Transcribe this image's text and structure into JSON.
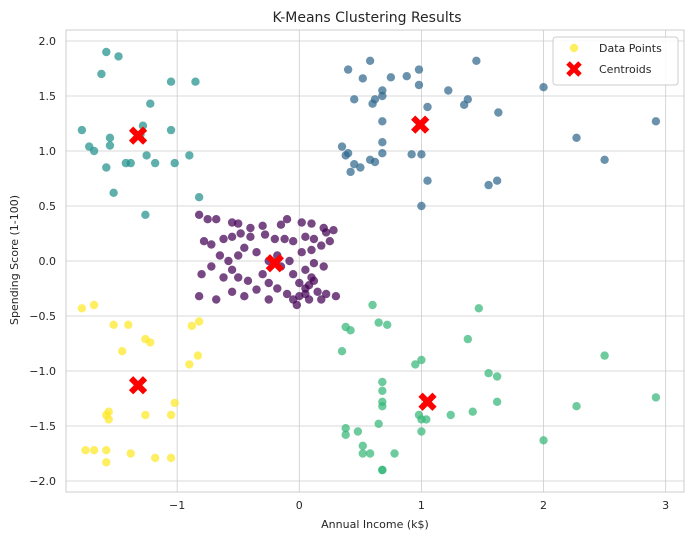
{
  "chart_data": {
    "type": "scatter",
    "title": "K-Means Clustering Results",
    "xlabel": "Annual Income (k$)",
    "ylabel": "Spending Score (1-100)",
    "xlim": [
      -1.91,
      3.15
    ],
    "ylim": [
      -2.1,
      2.1
    ],
    "xticks": [
      -1,
      0,
      1,
      2,
      3
    ],
    "yticks": [
      -2.0,
      -1.5,
      -1.0,
      -0.5,
      0.0,
      0.5,
      1.0,
      1.5,
      2.0
    ],
    "xtick_labels": [
      "−1",
      "0",
      "1",
      "2",
      "3"
    ],
    "ytick_labels": [
      "−2.0",
      "−1.5",
      "−1.0",
      "−0.5",
      "0.0",
      "0.5",
      "1.0",
      "1.5",
      "2.0"
    ],
    "grid": true,
    "legend_position": "top-right",
    "legend": [
      {
        "label": "Data Points",
        "marker": "circle",
        "color": "#fde725"
      },
      {
        "label": "Centroids",
        "marker": "x",
        "color": "#ff0000"
      }
    ],
    "clusters": [
      {
        "id": 0,
        "color": "#440154",
        "points": [
          [
            -0.82,
            0.42
          ],
          [
            -0.75,
            0.38
          ],
          [
            -0.68,
            0.38
          ],
          [
            -0.55,
            0.35
          ],
          [
            -0.5,
            0.34
          ],
          [
            -0.4,
            0.3
          ],
          [
            -0.3,
            0.32
          ],
          [
            -0.15,
            0.33
          ],
          [
            -0.1,
            0.38
          ],
          [
            0.02,
            0.35
          ],
          [
            0.1,
            0.34
          ],
          [
            0.2,
            0.3
          ],
          [
            -0.78,
            0.18
          ],
          [
            -0.72,
            0.15
          ],
          [
            -0.62,
            0.2
          ],
          [
            -0.55,
            0.22
          ],
          [
            -0.48,
            0.25
          ],
          [
            -0.4,
            0.22
          ],
          [
            -0.28,
            0.24
          ],
          [
            -0.2,
            0.2
          ],
          [
            -0.12,
            0.2
          ],
          [
            -0.05,
            0.18
          ],
          [
            0.05,
            0.22
          ],
          [
            0.12,
            0.2
          ],
          [
            0.22,
            0.26
          ],
          [
            0.28,
            0.28
          ],
          [
            -0.65,
            0.05
          ],
          [
            -0.58,
            0.0
          ],
          [
            -0.5,
            0.05
          ],
          [
            -0.45,
            0.12
          ],
          [
            -0.35,
            0.08
          ],
          [
            -0.25,
            0.0
          ],
          [
            -0.18,
            0.05
          ],
          [
            -0.08,
            0.0
          ],
          [
            0.02,
            0.08
          ],
          [
            0.1,
            0.1
          ],
          [
            0.18,
            0.14
          ],
          [
            0.25,
            0.18
          ],
          [
            -0.8,
            -0.12
          ],
          [
            -0.72,
            -0.05
          ],
          [
            -0.62,
            -0.15
          ],
          [
            -0.55,
            -0.08
          ],
          [
            -0.5,
            -0.15
          ],
          [
            -0.42,
            -0.18
          ],
          [
            -0.3,
            -0.12
          ],
          [
            -0.25,
            -0.2
          ],
          [
            -0.15,
            -0.05
          ],
          [
            -0.05,
            -0.12
          ],
          [
            0.05,
            -0.08
          ],
          [
            0.12,
            -0.02
          ],
          [
            0.2,
            -0.05
          ],
          [
            0.1,
            -0.15
          ],
          [
            0.0,
            -0.2
          ],
          [
            -0.82,
            -0.32
          ],
          [
            -0.68,
            -0.35
          ],
          [
            -0.55,
            -0.28
          ],
          [
            -0.45,
            -0.32
          ],
          [
            -0.35,
            -0.26
          ],
          [
            -0.25,
            -0.35
          ],
          [
            -0.1,
            -0.3
          ],
          [
            -0.05,
            -0.35
          ],
          [
            0.0,
            -0.32
          ],
          [
            0.05,
            -0.3
          ],
          [
            0.08,
            -0.35
          ],
          [
            0.15,
            -0.28
          ],
          [
            0.22,
            -0.3
          ],
          [
            0.3,
            -0.32
          ],
          [
            0.18,
            -0.35
          ],
          [
            0.05,
            -0.25
          ],
          [
            0.08,
            -0.22
          ],
          [
            0.12,
            -0.18
          ],
          [
            -0.02,
            -0.4
          ],
          [
            -0.18,
            -0.25
          ]
        ]
      },
      {
        "id": 1,
        "color": "#31688e",
        "points": [
          [
            0.4,
            1.74
          ],
          [
            0.58,
            1.82
          ],
          [
            0.98,
            1.74
          ],
          [
            1.45,
            1.82
          ],
          [
            0.52,
            1.66
          ],
          [
            0.62,
            1.47
          ],
          [
            0.68,
            1.55
          ],
          [
            0.75,
            1.67
          ],
          [
            0.88,
            1.68
          ],
          [
            0.98,
            1.6
          ],
          [
            1.22,
            1.55
          ],
          [
            1.38,
            1.47
          ],
          [
            0.45,
            1.47
          ],
          [
            0.6,
            1.43
          ],
          [
            0.68,
            1.5
          ],
          [
            1.05,
            1.4
          ],
          [
            1.35,
            1.42
          ],
          [
            1.63,
            1.35
          ],
          [
            2.0,
            1.58
          ],
          [
            2.92,
            1.27
          ],
          [
            0.68,
            1.27
          ],
          [
            0.68,
            1.08
          ],
          [
            0.35,
            1.04
          ],
          [
            0.38,
            0.96
          ],
          [
            0.45,
            0.88
          ],
          [
            0.5,
            0.85
          ],
          [
            0.58,
            0.92
          ],
          [
            0.62,
            0.9
          ],
          [
            0.68,
            0.98
          ],
          [
            0.92,
            0.97
          ],
          [
            1.0,
            0.97
          ],
          [
            0.42,
            0.81
          ],
          [
            0.4,
            0.98
          ],
          [
            1.05,
            0.73
          ],
          [
            1.55,
            0.69
          ],
          [
            1.62,
            0.73
          ],
          [
            2.27,
            1.12
          ],
          [
            2.5,
            0.92
          ],
          [
            1.0,
            0.5
          ]
        ]
      },
      {
        "id": 2,
        "color": "#35b779",
        "points": [
          [
            0.38,
            -0.6
          ],
          [
            0.42,
            -0.63
          ],
          [
            0.6,
            -0.4
          ],
          [
            0.65,
            -0.56
          ],
          [
            0.72,
            -0.58
          ],
          [
            0.35,
            -0.82
          ],
          [
            0.95,
            -0.94
          ],
          [
            1.0,
            -0.9
          ],
          [
            1.38,
            -0.71
          ],
          [
            1.47,
            -0.43
          ],
          [
            0.68,
            -1.1
          ],
          [
            0.68,
            -1.18
          ],
          [
            0.68,
            -1.28
          ],
          [
            0.68,
            -1.32
          ],
          [
            0.98,
            -1.4
          ],
          [
            1.0,
            -1.44
          ],
          [
            1.0,
            -1.55
          ],
          [
            1.04,
            -1.44
          ],
          [
            1.24,
            -1.4
          ],
          [
            1.42,
            -1.37
          ],
          [
            1.55,
            -1.02
          ],
          [
            1.62,
            -1.05
          ],
          [
            1.62,
            -1.28
          ],
          [
            2.27,
            -1.32
          ],
          [
            2.5,
            -0.86
          ],
          [
            2.92,
            -1.24
          ],
          [
            0.38,
            -1.52
          ],
          [
            0.38,
            -1.58
          ],
          [
            0.48,
            -1.55
          ],
          [
            0.52,
            -1.68
          ],
          [
            0.52,
            -1.75
          ],
          [
            0.58,
            -1.75
          ],
          [
            0.65,
            -1.48
          ],
          [
            0.68,
            -1.9
          ],
          [
            0.68,
            -1.9
          ],
          [
            0.78,
            -1.75
          ],
          [
            2.0,
            -1.63
          ]
        ]
      },
      {
        "id": 3,
        "color": "#21918c",
        "points": [
          [
            -1.58,
            1.9
          ],
          [
            -1.48,
            1.86
          ],
          [
            -1.62,
            1.7
          ],
          [
            -1.05,
            1.63
          ],
          [
            -0.85,
            1.63
          ],
          [
            -1.22,
            1.43
          ],
          [
            -1.28,
            1.23
          ],
          [
            -1.55,
            1.12
          ],
          [
            -1.78,
            1.19
          ],
          [
            -1.3,
            1.15
          ],
          [
            -1.05,
            1.19
          ],
          [
            -1.72,
            1.04
          ],
          [
            -1.68,
            1.0
          ],
          [
            -1.55,
            1.05
          ],
          [
            -1.42,
            0.89
          ],
          [
            -1.38,
            0.89
          ],
          [
            -1.25,
            0.96
          ],
          [
            -1.02,
            0.89
          ],
          [
            -1.18,
            0.89
          ],
          [
            -0.9,
            0.96
          ],
          [
            -1.58,
            0.85
          ],
          [
            -1.52,
            0.62
          ],
          [
            -0.82,
            0.58
          ],
          [
            -1.26,
            0.42
          ]
        ]
      },
      {
        "id": 4,
        "color": "#fde725",
        "points": [
          [
            -1.78,
            -0.43
          ],
          [
            -1.68,
            -0.4
          ],
          [
            -1.52,
            -0.58
          ],
          [
            -1.4,
            -0.58
          ],
          [
            -0.88,
            -0.59
          ],
          [
            -0.82,
            -0.55
          ],
          [
            -1.26,
            -0.71
          ],
          [
            -1.22,
            -0.74
          ],
          [
            -1.45,
            -0.82
          ],
          [
            -0.83,
            -0.86
          ],
          [
            -0.9,
            -0.94
          ],
          [
            -1.02,
            -1.29
          ],
          [
            -1.56,
            -1.37
          ],
          [
            -1.58,
            -1.4
          ],
          [
            -1.56,
            -1.44
          ],
          [
            -1.26,
            -1.4
          ],
          [
            -1.05,
            -1.4
          ],
          [
            -1.75,
            -1.72
          ],
          [
            -1.68,
            -1.72
          ],
          [
            -1.58,
            -1.72
          ],
          [
            -1.38,
            -1.75
          ],
          [
            -1.18,
            -1.79
          ],
          [
            -1.05,
            -1.79
          ],
          [
            -1.58,
            -1.83
          ]
        ]
      }
    ],
    "centroids": [
      [
        -0.2,
        -0.02
      ],
      [
        0.99,
        1.24
      ],
      [
        1.05,
        -1.28
      ],
      [
        -1.32,
        1.14
      ],
      [
        -1.32,
        -1.13
      ]
    ]
  }
}
